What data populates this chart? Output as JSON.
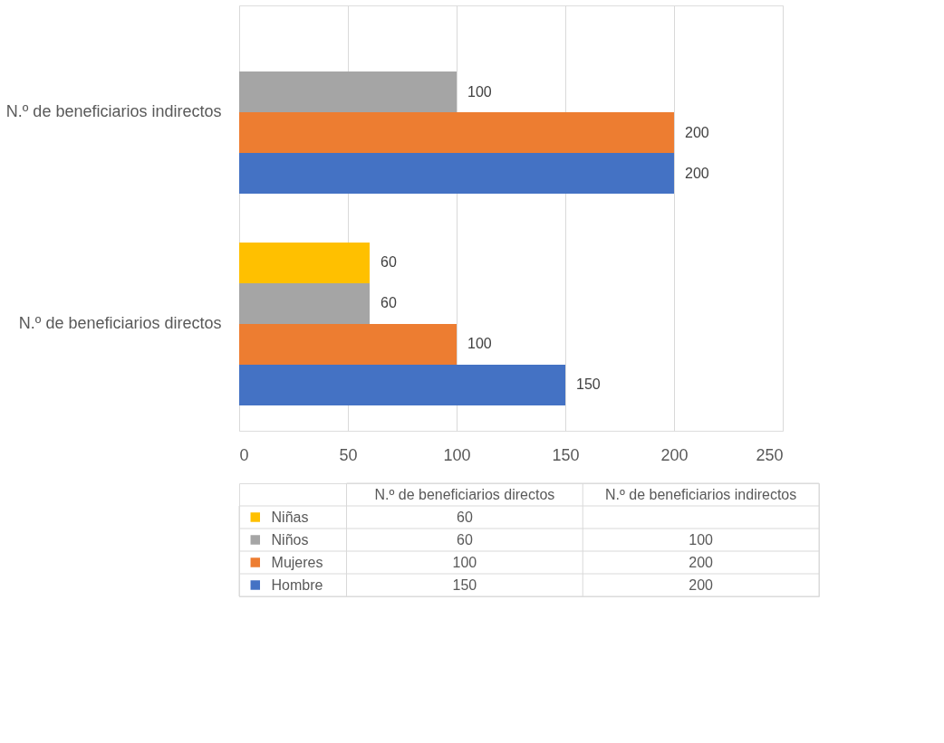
{
  "chart_data": {
    "type": "bar",
    "orientation": "horizontal",
    "categories": [
      "N.º de beneficiarios indirectos",
      "N.º de beneficiarios directos"
    ],
    "series": [
      {
        "name": "Niñas",
        "color": "#ffc000",
        "values": [
          null,
          60
        ]
      },
      {
        "name": "Niños",
        "color": "#a5a5a5",
        "values": [
          100,
          60
        ]
      },
      {
        "name": "Mujeres",
        "color": "#ed7d31",
        "values": [
          200,
          100
        ]
      },
      {
        "name": "Hombre",
        "color": "#4472c4",
        "values": [
          200,
          150
        ]
      }
    ],
    "annotations": [
      "60",
      "60",
      "100",
      "100",
      "200",
      "150",
      "200"
    ],
    "xlim": [
      0,
      250
    ],
    "xticks": [
      0,
      50,
      100,
      150,
      200,
      250
    ],
    "grid": "x",
    "data_labels": true,
    "legend": "bottom"
  }
}
